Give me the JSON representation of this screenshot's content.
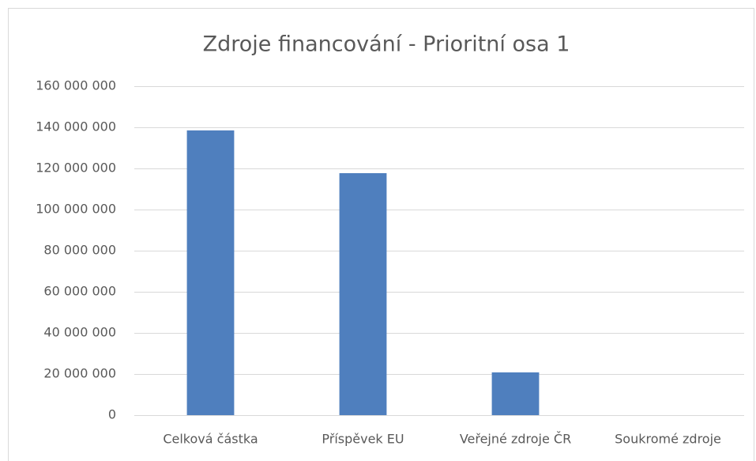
{
  "chart_data": {
    "type": "bar",
    "title": "Zdroje financování - Prioritní osa 1",
    "categories": [
      "Celková částka",
      "Příspěvek EU",
      "Veřejné zdroje ČR",
      "Soukromé zdroje"
    ],
    "values": [
      138500000,
      117700000,
      20800000,
      0
    ],
    "color": "#4f7fbe",
    "ylim": [
      0,
      160000000
    ],
    "yticks": [
      0,
      {
        "value": 20000000,
        "label": "20 000 000"
      },
      {
        "value": 40000000,
        "label": "40 000 000"
      },
      {
        "value": 60000000,
        "label": "60 000 000"
      },
      {
        "value": 80000000,
        "label": "80 000 000"
      },
      {
        "value": 100000000,
        "label": "100 000 000"
      },
      {
        "value": 120000000,
        "label": "120 000 000"
      },
      {
        "value": 140000000,
        "label": "140 000 000"
      },
      {
        "value": 160000000,
        "label": "160 000 000"
      }
    ],
    "grid": true
  }
}
